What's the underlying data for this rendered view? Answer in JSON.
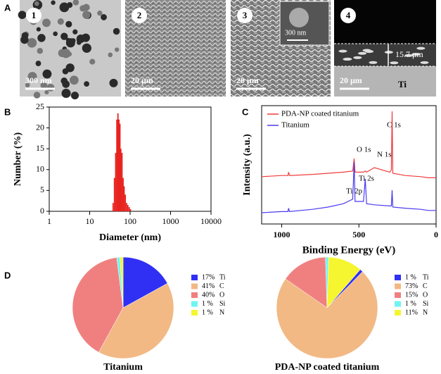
{
  "panel_a": {
    "label": "A",
    "images": [
      {
        "number": "1",
        "scale": "300 nm"
      },
      {
        "number": "2",
        "scale": "20 μm"
      },
      {
        "number": "3",
        "scale": "20 μm",
        "inset_scale": "300 nm"
      },
      {
        "number": "4",
        "scale": "20 μm",
        "thickness": "15.7 μm",
        "substrate": "Ti"
      }
    ]
  },
  "chart_data": [
    {
      "type": "bar",
      "panel_label": "B",
      "xlabel": "Diameter (nm)",
      "ylabel": "Number (%)",
      "x": [
        38,
        41,
        44,
        47,
        50,
        53,
        56,
        59,
        63,
        67,
        71,
        76,
        82,
        88,
        95,
        102
      ],
      "values": [
        2,
        8,
        14,
        22,
        23.5,
        22,
        21,
        15,
        14,
        8,
        6,
        4,
        2,
        1.5,
        1,
        0.5
      ],
      "color": "#e8231f",
      "x_log": true,
      "xlim": [
        1,
        10000
      ],
      "xticks": [
        1,
        10,
        100,
        1000,
        10000
      ],
      "ylim": [
        0,
        25
      ],
      "yticks": [
        0,
        5,
        10,
        15,
        20,
        25
      ]
    },
    {
      "type": "line",
      "panel_label": "C",
      "xlabel": "Binding Energy (eV)",
      "ylabel": "Intensity (a.u.)",
      "x": [
        1130,
        1000,
        960,
        955,
        950,
        800,
        700,
        600,
        540,
        531,
        525,
        470,
        459,
        450,
        400,
        300,
        290,
        285,
        280,
        200,
        100,
        50,
        0
      ],
      "series": [
        {
          "name": "PDA-NP coated titanium",
          "color": "#f03c3c",
          "values": [
            42,
            43,
            43,
            46,
            43,
            44,
            45,
            46,
            47,
            58,
            46,
            46,
            47,
            46,
            50,
            46,
            48,
            100,
            45,
            43,
            42,
            41,
            41
          ]
        },
        {
          "name": "Titanium",
          "color": "#4a3cf0",
          "values": [
            10,
            11,
            11,
            14,
            11,
            13,
            15,
            18,
            22,
            55,
            20,
            20,
            40,
            18,
            17,
            16,
            16,
            30,
            15,
            14,
            13,
            12,
            12
          ]
        }
      ],
      "annotations": [
        "O 1s",
        "N 1s",
        "C 1s",
        "Ti 2p",
        "Ti 2s"
      ],
      "xlim": [
        1130,
        0
      ],
      "xticks": [
        1000,
        500,
        0
      ],
      "ylim": [
        0,
        105
      ]
    },
    {
      "type": "pie",
      "title": "Titanium",
      "categories": [
        "Ti",
        "C",
        "O",
        "Si",
        "N"
      ],
      "values": [
        17,
        41,
        40,
        1,
        1
      ],
      "value_labels": [
        "17%",
        "41%",
        "40%",
        "1 %",
        "1 %"
      ],
      "colors": [
        "#3030f5",
        "#f2b985",
        "#f08080",
        "#6ff5f0",
        "#f5f530"
      ]
    },
    {
      "type": "pie",
      "title": "PDA-NP coated titanium",
      "categories": [
        "Ti",
        "C",
        "O",
        "Si",
        "N"
      ],
      "values": [
        1,
        73,
        15,
        1,
        11
      ],
      "value_labels": [
        "1 %",
        "73%",
        "15%",
        "1 %",
        "11%"
      ],
      "colors": [
        "#3030f5",
        "#f2b985",
        "#f08080",
        "#6ff5f0",
        "#f5f530"
      ]
    }
  ]
}
